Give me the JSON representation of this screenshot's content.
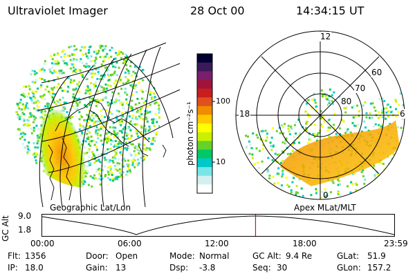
{
  "header": {
    "title": "Ultraviolet Imager",
    "date": "28 Oct 00",
    "time": "14:34:15 UT"
  },
  "colorbar": {
    "label": "photon cm⁻²s⁻¹",
    "ticks": [
      "100",
      "10"
    ],
    "colors": [
      "#000033",
      "#3a1a5a",
      "#7a1e6e",
      "#a0143c",
      "#c81e1e",
      "#e0501e",
      "#f08c00",
      "#ffc800",
      "#ffff00",
      "#c8f000",
      "#64d228",
      "#00c864",
      "#00c8c8",
      "#78e6e6",
      "#d2f0f0",
      "#ffffff"
    ]
  },
  "left_map": {
    "label": "Geographic Lat/Lon"
  },
  "right_map": {
    "label": "Apex MLat/MLT",
    "mlt_labels": {
      "top": "12",
      "left": "18",
      "right": "6",
      "bottom": "0"
    },
    "lat_labels": [
      "60",
      "70",
      "80"
    ]
  },
  "altitude_plot": {
    "ylabel": "GC Alt",
    "yticks": [
      "9.0",
      "1.8"
    ],
    "xticks": [
      "00:00",
      "06:00",
      "12:00",
      "18:00",
      "23:59"
    ],
    "current_time_frac": 0.606,
    "marker_color": "#d01010"
  },
  "status": {
    "flt_label": "Flt:",
    "flt": "1356",
    "ip_label": "IP:",
    "ip": "18.0",
    "door_label": "Door:",
    "door": "Open",
    "gain_label": "Gain:",
    "gain": "13",
    "mode_label": "Mode:",
    "mode": "Normal",
    "dsp_label": "Dsp:",
    "dsp": "-3.8",
    "gcalt_label": "GC Alt:",
    "gcalt": "9.4 Re",
    "seq_label": "Seq:",
    "seq": "30",
    "glat_label": "GLat:",
    "glat": "51.9",
    "glon_label": "GLon:",
    "glon": "157.2"
  }
}
